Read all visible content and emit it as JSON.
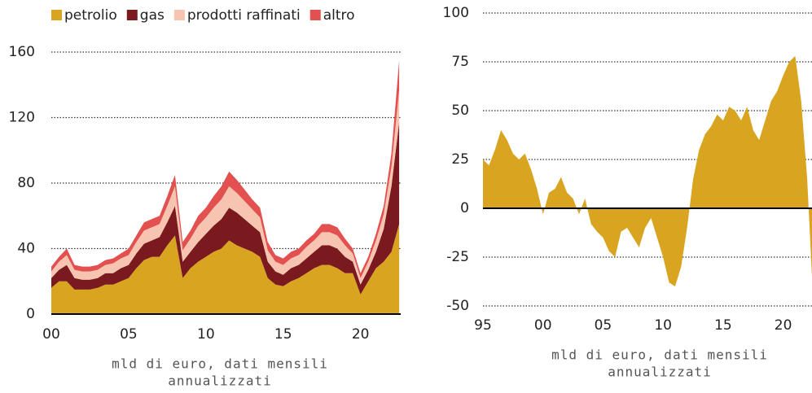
{
  "chart_data": [
    {
      "type": "stacked_area",
      "legend": "top-left",
      "x": [
        2000,
        2000.5,
        2001,
        2001.5,
        2002,
        2002.5,
        2003,
        2003.5,
        2004,
        2004.5,
        2005,
        2005.5,
        2006,
        2006.5,
        2007,
        2007.5,
        2008,
        2008.5,
        2009,
        2009.5,
        2010,
        2010.5,
        2011,
        2011.5,
        2012,
        2012.5,
        2013,
        2013.5,
        2014,
        2014.5,
        2015,
        2015.5,
        2016,
        2016.5,
        2017,
        2017.5,
        2018,
        2018.5,
        2019,
        2019.5,
        2020,
        2020.5,
        2021,
        2021.5,
        2022,
        2022.5
      ],
      "series": [
        {
          "name": "petrolio",
          "color": "#d9a521",
          "values": [
            16,
            20,
            20,
            15,
            15,
            15,
            16,
            18,
            18,
            20,
            22,
            28,
            33,
            35,
            35,
            42,
            48,
            22,
            28,
            32,
            35,
            38,
            40,
            45,
            42,
            40,
            38,
            35,
            22,
            18,
            17,
            20,
            22,
            25,
            28,
            30,
            30,
            28,
            25,
            25,
            12,
            20,
            28,
            32,
            38,
            55
          ]
        },
        {
          "name": "gas",
          "color": "#7a1a1f",
          "values": [
            6,
            7,
            10,
            7,
            6,
            6,
            6,
            7,
            7,
            8,
            8,
            9,
            10,
            10,
            12,
            14,
            18,
            10,
            10,
            12,
            14,
            16,
            18,
            20,
            20,
            18,
            16,
            15,
            10,
            8,
            7,
            8,
            8,
            9,
            10,
            12,
            12,
            12,
            10,
            7,
            6,
            7,
            10,
            20,
            40,
            62
          ]
        },
        {
          "name": "prodotti raffinati",
          "color": "#f6c4b0",
          "values": [
            4,
            5,
            6,
            5,
            5,
            5,
            5,
            5,
            6,
            6,
            6,
            7,
            8,
            8,
            8,
            10,
            12,
            7,
            8,
            10,
            10,
            11,
            12,
            13,
            12,
            11,
            10,
            9,
            7,
            6,
            6,
            6,
            6,
            7,
            7,
            8,
            8,
            8,
            7,
            5,
            4,
            5,
            7,
            9,
            12,
            20
          ]
        },
        {
          "name": "altro",
          "color": "#e35050",
          "values": [
            3,
            3,
            4,
            3,
            3,
            3,
            3,
            3,
            3,
            3,
            4,
            4,
            5,
            5,
            5,
            6,
            7,
            5,
            5,
            6,
            6,
            7,
            8,
            9,
            8,
            7,
            6,
            6,
            5,
            4,
            4,
            4,
            4,
            4,
            4,
            5,
            5,
            5,
            4,
            3,
            3,
            3,
            4,
            5,
            8,
            18
          ]
        }
      ],
      "xlim": [
        2000,
        2022.6
      ],
      "xticks": [
        {
          "value": 2000,
          "label": "00"
        },
        {
          "value": 2005,
          "label": "05"
        },
        {
          "value": 2010,
          "label": "10"
        },
        {
          "value": 2015,
          "label": "15"
        },
        {
          "value": 2020,
          "label": "20"
        }
      ],
      "ylim": [
        0,
        160
      ],
      "yticks": [
        0,
        40,
        80,
        120,
        160
      ],
      "grid": true,
      "xlabel": [
        "mld di euro, dati mensili",
        "annualizzati"
      ]
    },
    {
      "type": "area",
      "color": "#d9a521",
      "x": [
        1995,
        1995.5,
        1996,
        1996.5,
        1997,
        1997.5,
        1998,
        1998.5,
        1999,
        1999.5,
        2000,
        2000.5,
        2001,
        2001.5,
        2002,
        2002.5,
        2003,
        2003.5,
        2004,
        2004.5,
        2005,
        2005.5,
        2006,
        2006.5,
        2007,
        2007.5,
        2008,
        2008.5,
        2009,
        2009.5,
        2010,
        2010.5,
        2011,
        2011.5,
        2012,
        2012.5,
        2013,
        2013.5,
        2014,
        2014.5,
        2015,
        2015.5,
        2016,
        2016.5,
        2017,
        2017.5,
        2018,
        2018.5,
        2019,
        2019.5,
        2020,
        2020.5,
        2021,
        2021.5,
        2022,
        2022.4
      ],
      "values": [
        25,
        22,
        30,
        40,
        35,
        28,
        25,
        28,
        20,
        10,
        -3,
        8,
        10,
        16,
        8,
        5,
        -3,
        5,
        -8,
        -12,
        -15,
        -22,
        -25,
        -12,
        -10,
        -15,
        -20,
        -10,
        -5,
        -15,
        -25,
        -38,
        -40,
        -30,
        -10,
        15,
        30,
        38,
        42,
        48,
        45,
        52,
        50,
        45,
        52,
        40,
        35,
        45,
        55,
        60,
        68,
        75,
        78,
        55,
        15,
        -35
      ],
      "xlim": [
        1995,
        2022.4
      ],
      "xticks": [
        {
          "value": 1995,
          "label": "95"
        },
        {
          "value": 2000,
          "label": "00"
        },
        {
          "value": 2005,
          "label": "05"
        },
        {
          "value": 2010,
          "label": "10"
        },
        {
          "value": 2015,
          "label": "15"
        },
        {
          "value": 2020,
          "label": "20"
        }
      ],
      "ylim": [
        -50,
        100
      ],
      "yticks": [
        -50,
        -25,
        0,
        25,
        50,
        75,
        100
      ],
      "grid": true,
      "xlabel": [
        "mld di euro, dati mensili",
        "annualizzati"
      ]
    }
  ]
}
